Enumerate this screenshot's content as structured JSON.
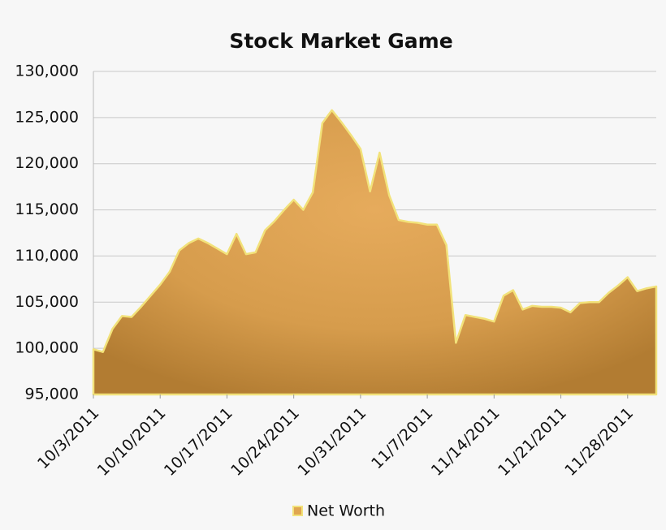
{
  "chart_data": {
    "type": "area",
    "title": "Stock Market Game",
    "x": [
      "2011-10-03",
      "2011-10-04",
      "2011-10-05",
      "2011-10-06",
      "2011-10-07",
      "2011-10-08",
      "2011-10-09",
      "2011-10-10",
      "2011-10-11",
      "2011-10-12",
      "2011-10-13",
      "2011-10-14",
      "2011-10-15",
      "2011-10-16",
      "2011-10-17",
      "2011-10-18",
      "2011-10-19",
      "2011-10-20",
      "2011-10-21",
      "2011-10-22",
      "2011-10-23",
      "2011-10-24",
      "2011-10-25",
      "2011-10-26",
      "2011-10-27",
      "2011-10-28",
      "2011-10-29",
      "2011-10-30",
      "2011-10-31",
      "2011-11-01",
      "2011-11-02",
      "2011-11-03",
      "2011-11-04",
      "2011-11-05",
      "2011-11-06",
      "2011-11-07",
      "2011-11-08",
      "2011-11-09",
      "2011-11-10",
      "2011-11-11",
      "2011-11-12",
      "2011-11-13",
      "2011-11-14",
      "2011-11-15",
      "2011-11-16",
      "2011-11-17",
      "2011-11-18",
      "2011-11-19",
      "2011-11-20",
      "2011-11-21",
      "2011-11-22",
      "2011-11-23",
      "2011-11-24",
      "2011-11-25",
      "2011-11-26",
      "2011-11-27",
      "2011-11-28",
      "2011-11-29",
      "2011-11-30",
      "2011-12-01"
    ],
    "series": [
      {
        "name": "Net Worth",
        "color": "#e0a650",
        "line_color": "#f2e27a",
        "values": [
          99900,
          99600,
          102100,
          103500,
          103400,
          104500,
          105700,
          106900,
          108300,
          110600,
          111400,
          111900,
          111400,
          110800,
          110200,
          112400,
          110200,
          110400,
          112800,
          113800,
          115000,
          116100,
          115000,
          116900,
          124400,
          125800,
          124500,
          123100,
          121600,
          117000,
          121200,
          116600,
          113900,
          113700,
          113600,
          113400,
          113400,
          111200,
          100600,
          103600,
          103400,
          103200,
          102900,
          105700,
          106300,
          104200,
          104600,
          104500,
          104500,
          104400,
          103900,
          104900,
          105000,
          105000,
          106000,
          106800,
          107700,
          106200,
          106500,
          106700
        ]
      }
    ],
    "xlim": [
      "2011-10-03",
      "2011-12-01"
    ],
    "xticks": [
      {
        "value": "2011-10-03",
        "label": "10/3/2011"
      },
      {
        "value": "2011-10-10",
        "label": "10/10/2011"
      },
      {
        "value": "2011-10-17",
        "label": "10/17/2011"
      },
      {
        "value": "2011-10-24",
        "label": "10/24/2011"
      },
      {
        "value": "2011-10-31",
        "label": "10/31/2011"
      },
      {
        "value": "2011-11-07",
        "label": "11/7/2011"
      },
      {
        "value": "2011-11-14",
        "label": "11/14/2011"
      },
      {
        "value": "2011-11-21",
        "label": "11/21/2011"
      },
      {
        "value": "2011-11-28",
        "label": "11/28/2011"
      }
    ],
    "ylim": [
      95000,
      130000
    ],
    "yticks": [
      {
        "value": 95000,
        "label": "95,000"
      },
      {
        "value": 100000,
        "label": "100,000"
      },
      {
        "value": 105000,
        "label": "105,000"
      },
      {
        "value": 110000,
        "label": "110,000"
      },
      {
        "value": 115000,
        "label": "115,000"
      },
      {
        "value": 120000,
        "label": "120,000"
      },
      {
        "value": 125000,
        "label": "125,000"
      },
      {
        "value": 130000,
        "label": "130,000"
      }
    ],
    "grid": true,
    "legend": "bottom"
  }
}
